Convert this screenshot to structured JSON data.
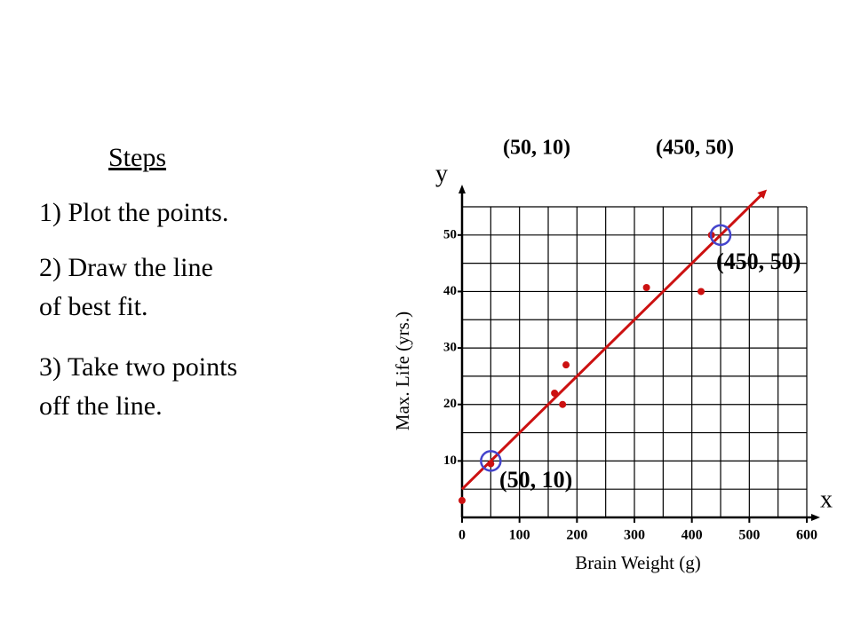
{
  "steps": {
    "title": "Steps",
    "items": [
      [
        "1) Plot the points."
      ],
      [
        "2) Draw the line",
        "of best fit."
      ],
      [
        "3) Take two points",
        "off the line."
      ]
    ]
  },
  "header": {
    "points": [
      "(50, 10)",
      "(450, 50)"
    ]
  },
  "chart_data": {
    "type": "scatter",
    "xlabel": "Brain Weight (g)",
    "ylabel": "Max. Life (yrs.)",
    "x_axis_name": "x",
    "y_axis_name": "y",
    "x": [
      0,
      50,
      161,
      175,
      181,
      321,
      416,
      434
    ],
    "y": [
      3,
      9.5,
      22,
      20,
      27,
      40.7,
      40,
      50
    ],
    "color": "#cc1111",
    "fit_line": {
      "x": [
        0,
        525
      ],
      "y": [
        5,
        57.5
      ],
      "color": "#cc1111"
    },
    "highlights": [
      {
        "x": 50,
        "y": 10,
        "label": "(50, 10)"
      },
      {
        "x": 450,
        "y": 50,
        "label": "(450, 50)"
      }
    ],
    "highlight_color": "#4444cc",
    "xlim": [
      0,
      600
    ],
    "ylim": [
      0,
      55
    ],
    "xticks": [
      0,
      100,
      200,
      300,
      400,
      500,
      600
    ],
    "yticks": [
      10,
      20,
      30,
      40,
      50
    ],
    "xgrid": [
      50,
      100,
      150,
      200,
      250,
      300,
      350,
      400,
      450,
      500,
      550,
      600
    ],
    "ygrid": [
      5,
      10,
      15,
      20,
      25,
      30,
      35,
      40,
      45,
      50,
      55
    ]
  }
}
